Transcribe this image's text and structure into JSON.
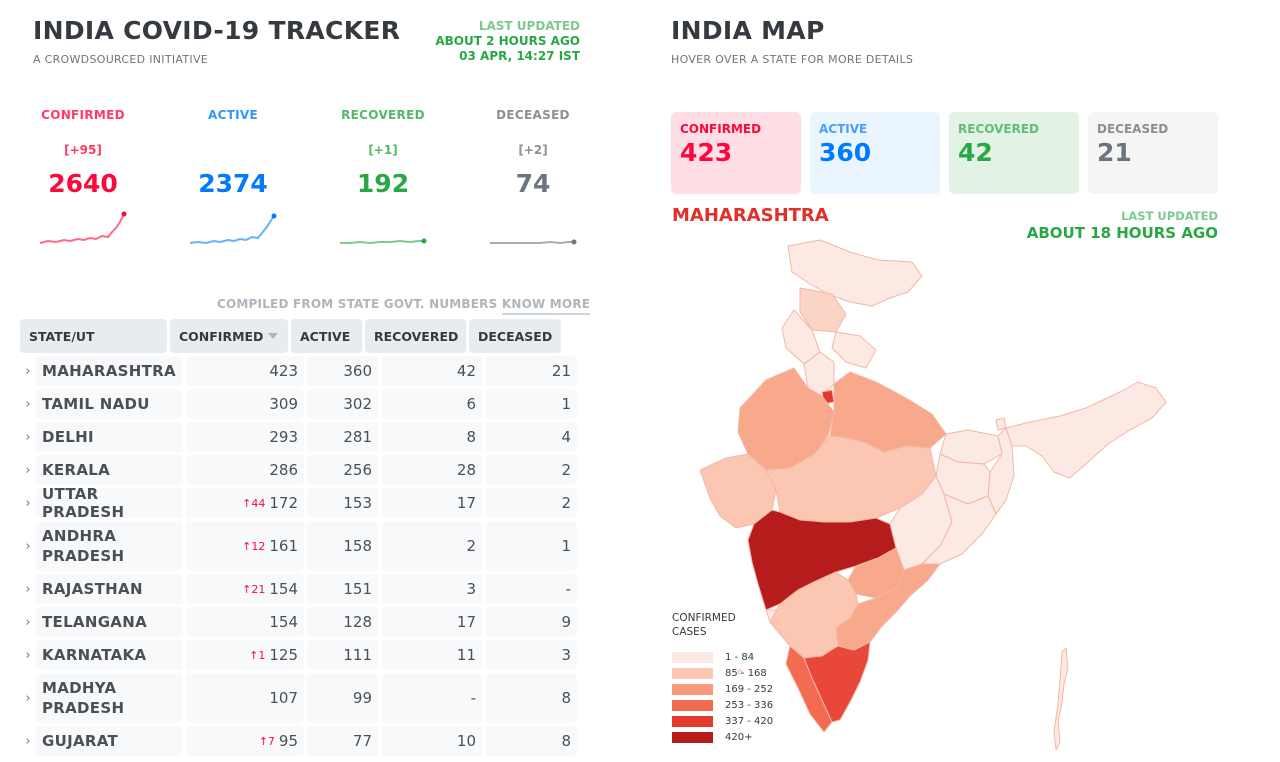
{
  "header": {
    "title": "INDIA COVID-19 TRACKER",
    "subtitle": "A CROWDSOURCED INITIATIVE",
    "last_updated_label": "LAST UPDATED",
    "last_updated_rel": "ABOUT 2 HOURS AGO",
    "last_updated_abs": "03 APR, 14:27 IST"
  },
  "stats": [
    {
      "label": "CONFIRMED",
      "delta": "[+95]",
      "value": "2640"
    },
    {
      "label": "ACTIVE",
      "delta": "",
      "value": "2374"
    },
    {
      "label": "RECOVERED",
      "delta": "[+1]",
      "value": "192"
    },
    {
      "label": "DECEASED",
      "delta": "[+2]",
      "value": "74"
    }
  ],
  "compiled": {
    "text": "COMPILED FROM STATE GOVT. NUMBERS",
    "link": "KNOW MORE"
  },
  "table": {
    "headers": [
      "STATE/UT",
      "CONFIRMED",
      "ACTIVE",
      "RECOVERED",
      "DECEASED"
    ],
    "rows": [
      {
        "state": "MAHARASHTRA",
        "delta": "",
        "confirmed": "423",
        "active": "360",
        "recovered": "42",
        "deceased": "21"
      },
      {
        "state": "TAMIL NADU",
        "delta": "",
        "confirmed": "309",
        "active": "302",
        "recovered": "6",
        "deceased": "1"
      },
      {
        "state": "DELHI",
        "delta": "",
        "confirmed": "293",
        "active": "281",
        "recovered": "8",
        "deceased": "4"
      },
      {
        "state": "KERALA",
        "delta": "",
        "confirmed": "286",
        "active": "256",
        "recovered": "28",
        "deceased": "2"
      },
      {
        "state": "UTTAR PRADESH",
        "delta": "↑44",
        "confirmed": "172",
        "active": "153",
        "recovered": "17",
        "deceased": "2"
      },
      {
        "state": "ANDHRA PRADESH",
        "delta": "↑12",
        "confirmed": "161",
        "active": "158",
        "recovered": "2",
        "deceased": "1"
      },
      {
        "state": "RAJASTHAN",
        "delta": "↑21",
        "confirmed": "154",
        "active": "151",
        "recovered": "3",
        "deceased": "-"
      },
      {
        "state": "TELANGANA",
        "delta": "",
        "confirmed": "154",
        "active": "128",
        "recovered": "17",
        "deceased": "9"
      },
      {
        "state": "KARNATAKA",
        "delta": "↑1",
        "confirmed": "125",
        "active": "111",
        "recovered": "11",
        "deceased": "3"
      },
      {
        "state": "MADHYA PRADESH",
        "delta": "",
        "confirmed": "107",
        "active": "99",
        "recovered": "-",
        "deceased": "8"
      },
      {
        "state": "GUJARAT",
        "delta": "↑7",
        "confirmed": "95",
        "active": "77",
        "recovered": "10",
        "deceased": "8"
      }
    ]
  },
  "map_panel": {
    "title": "INDIA MAP",
    "subtitle": "HOVER OVER A STATE FOR MORE DETAILS",
    "boxes": [
      {
        "label": "CONFIRMED",
        "value": "423"
      },
      {
        "label": "ACTIVE",
        "value": "360"
      },
      {
        "label": "RECOVERED",
        "value": "42"
      },
      {
        "label": "DECEASED",
        "value": "21"
      }
    ],
    "selected_state": "MAHARASHTRA",
    "last_updated_label": "LAST UPDATED",
    "last_updated_rel": "ABOUT 18 HOURS AGO",
    "legend_title_1": "CONFIRMED",
    "legend_title_2": "CASES",
    "legend": [
      {
        "range": "1 - 84",
        "color": "#fde9e4"
      },
      {
        "range": "85 - 168",
        "color": "#fbc6b2"
      },
      {
        "range": "169 - 252",
        "color": "#f89b7c"
      },
      {
        "range": "253 - 336",
        "color": "#f36b51"
      },
      {
        "range": "337 - 420",
        "color": "#e23b2e"
      },
      {
        "range": "420+",
        "color": "#b71c1c"
      }
    ]
  },
  "colors": {
    "confirmed": "#ff073a",
    "active": "#007bff",
    "recovered": "#28a745",
    "deceased": "#6c757d"
  }
}
